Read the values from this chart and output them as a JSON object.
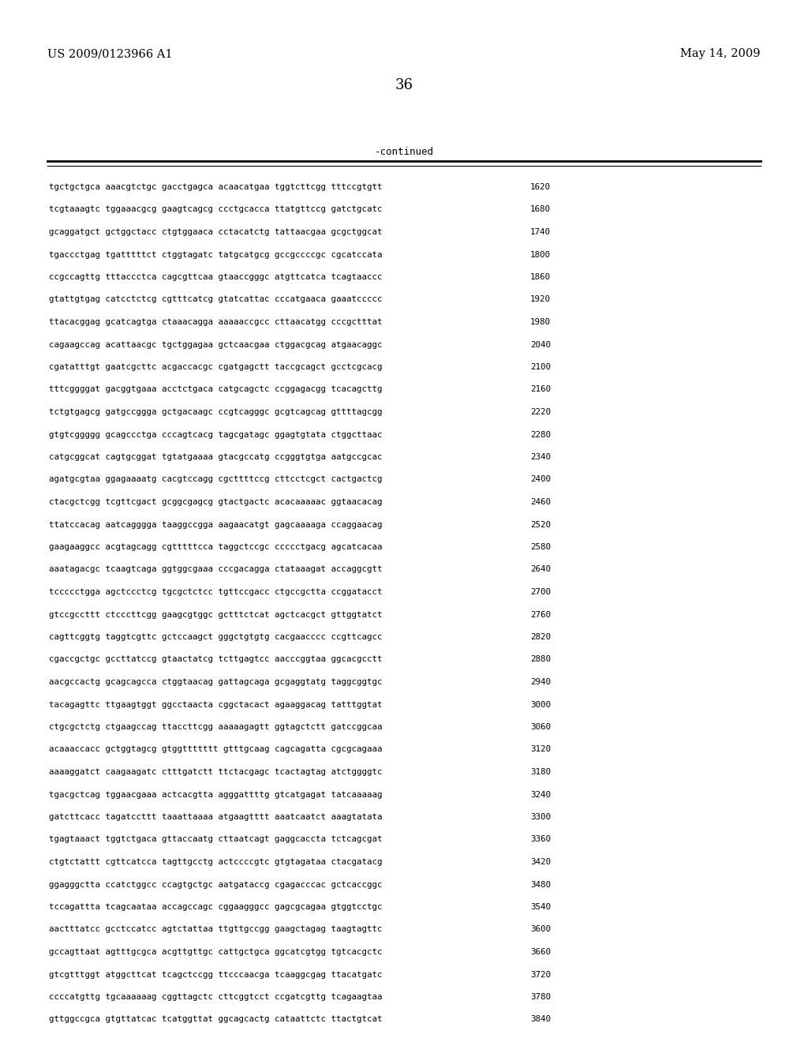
{
  "header_left": "US 2009/0123966 A1",
  "header_right": "May 14, 2009",
  "page_number": "36",
  "continued_label": "-continued",
  "background_color": "#ffffff",
  "text_color": "#000000",
  "sequence_lines": [
    [
      "tgctgctgca aaacgtctgc gacctgagca acaacatgaa tggtcttcgg tttccgtgtt",
      "1620"
    ],
    [
      "tcgtaaagtc tggaaacgcg gaagtcagcg ccctgcacca ttatgttccg gatctgcatc",
      "1680"
    ],
    [
      "gcaggatgct gctggctacc ctgtggaaca cctacatctg tattaacgaa gcgctggcat",
      "1740"
    ],
    [
      "tgaccctgag tgatttttct ctggtagatc tatgcatgcg gccgccccgc cgcatccata",
      "1800"
    ],
    [
      "ccgccagttg tttaccctca cagcgttcaa gtaaccgggc atgttcatca tcagtaaccc",
      "1860"
    ],
    [
      "gtattgtgag catcctctcg cgtttcatcg gtatcattac cccatgaaca gaaatccccc",
      "1920"
    ],
    [
      "ttacacggag gcatcagtga ctaaacagga aaaaaccgcc cttaacatgg cccgctttat",
      "1980"
    ],
    [
      "cagaagccag acattaacgc tgctggagaa gctcaacgaa ctggacgcag atgaacaggc",
      "2040"
    ],
    [
      "cgatatttgt gaatcgcttc acgaccacgc cgatgagctt taccgcagct gcctcgcacg",
      "2100"
    ],
    [
      "tttcggggat gacggtgaaa acctctgaca catgcagctc ccggagacgg tcacagcttg",
      "2160"
    ],
    [
      "tctgtgagcg gatgccggga gctgacaagc ccgtcagggc gcgtcagcag gttttagcgg",
      "2220"
    ],
    [
      "gtgtcggggg gcagccctga cccagtcacg tagcgatagc ggagtgtata ctggcttaac",
      "2280"
    ],
    [
      "catgcggcat cagtgcggat tgtatgaaaa gtacgccatg ccgggtgtga aatgccgcac",
      "2340"
    ],
    [
      "agatgcgtaa ggagaaaatg cacgtccagg cgcttttccg cttcctcgct cactgactcg",
      "2400"
    ],
    [
      "ctacgctcgg tcgttcgact gcggcgagcg gtactgactc acacaaaaac ggtaacacag",
      "2460"
    ],
    [
      "ttatccacag aatcagggga taaggccgga aagaacatgt gagcaaaaga ccaggaacag",
      "2520"
    ],
    [
      "gaagaaggcc acgtagcagg cgtttttcca taggctccgc ccccctgacg agcatcacaa",
      "2580"
    ],
    [
      "aaatagacgc tcaagtcaga ggtggcgaaa cccgacagga ctataaagat accaggcgtt",
      "2640"
    ],
    [
      "tccccctgga agctccctcg tgcgctctcc tgttccgacc ctgccgctta ccggatacct",
      "2700"
    ],
    [
      "gtccgccttt ctcccttcgg gaagcgtggc gctttctcat agctcacgct gttggtatct",
      "2760"
    ],
    [
      "cagttcggtg taggtcgttc gctccaagct gggctgtgtg cacgaacccc ccgttcagcc",
      "2820"
    ],
    [
      "cgaccgctgc gccttatccg gtaactatcg tcttgagtcc aacccggtaa ggcacgcctt",
      "2880"
    ],
    [
      "aacgccactg gcagcagcca ctggtaacag gattagcaga gcgaggtatg taggcggtgc",
      "2940"
    ],
    [
      "tacagagttc ttgaagtggt ggcctaacta cggctacact agaaggacag tatttggtat",
      "3000"
    ],
    [
      "ctgcgctctg ctgaagccag ttaccttcgg aaaaagagtt ggtagctctt gatccggcaa",
      "3060"
    ],
    [
      "acaaaccacc gctggtagcg gtggttttttt gtttgcaag cagcagatta cgcgcagaaa",
      "3120"
    ],
    [
      "aaaaggatct caagaagatc ctttgatctt ttctacgagc tcactagtag atctggggtc",
      "3180"
    ],
    [
      "tgacgctcag tggaacgaaa actcacgtta agggattttg gtcatgagat tatcaaaaag",
      "3240"
    ],
    [
      "gatcttcacc tagatccttt taaattaaaa atgaagtttt aaatcaatct aaagtatata",
      "3300"
    ],
    [
      "tgagtaaact tggtctgaca gttaccaatg cttaatcagt gaggcaccta tctcagcgat",
      "3360"
    ],
    [
      "ctgtctattt cgttcatcca tagttgcctg actccccgtc gtgtagataa ctacgatacg",
      "3420"
    ],
    [
      "ggagggctta ccatctggcc ccagtgctgc aatgataccg cgagacccac gctcaccggc",
      "3480"
    ],
    [
      "tccagattta tcagcaataa accagccagc cggaagggcc gagcgcagaa gtggtcctgc",
      "3540"
    ],
    [
      "aactttatcc gcctccatcc agtctattaa ttgttgccgg gaagctagag taagtagttc",
      "3600"
    ],
    [
      "gccagttaat agtttgcgca acgttgttgc cattgctgca ggcatcgtgg tgtcacgctc",
      "3660"
    ],
    [
      "gtcgtttggt atggcttcat tcagctccgg ttcccaacga tcaaggcgag ttacatgatc",
      "3720"
    ],
    [
      "ccccatgttg tgcaaaaaag cggttagctc cttcggtcct ccgatcgttg tcagaagtaa",
      "3780"
    ],
    [
      "gttggccgca gtgttatcac tcatggttat ggcagcactg cataattctc ttactgtcat",
      "3840"
    ]
  ]
}
